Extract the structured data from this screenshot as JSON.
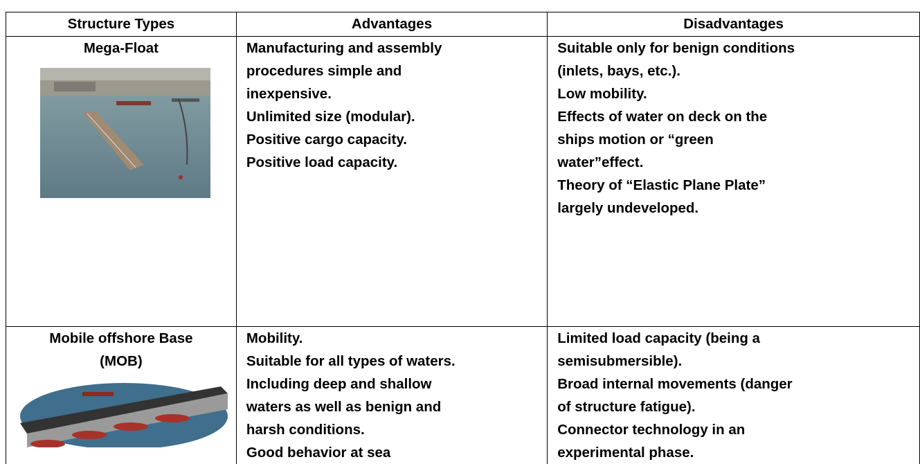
{
  "table": {
    "headers": [
      "Structure Types",
      "Advantages",
      "Disadvantages"
    ],
    "rows": [
      {
        "type": [
          "Mega-Float"
        ],
        "advantages": [
          "Manufacturing and assembly",
          "procedures simple and",
          "inexpensive.",
          "Unlimited size (modular).",
          "Positive cargo capacity.",
          "Positive load capacity."
        ],
        "disadvantages": [
          "Suitable only for benign conditions",
          "(inlets, bays, etc.).",
          "Low mobility.",
          "Effects of water on deck on the",
          "ships motion or “green",
          "water”effect.",
          "Theory of “Elastic Plane Plate”",
          "largely undeveloped."
        ]
      },
      {
        "type": [
          "Mobile offshore Base",
          "(MOB)"
        ],
        "advantages": [
          "Mobility.",
          "Suitable for all types of waters.",
          "Including deep and shallow",
          "waters as well as benign and",
          "harsh conditions.",
          "Good behavior at sea"
        ],
        "disadvantages": [
          "Limited load capacity (being a",
          "semisubmersible).",
          "Broad internal movements (danger",
          "of structure fatigue).",
          "Connector technology in an",
          "experimental phase."
        ]
      }
    ]
  }
}
